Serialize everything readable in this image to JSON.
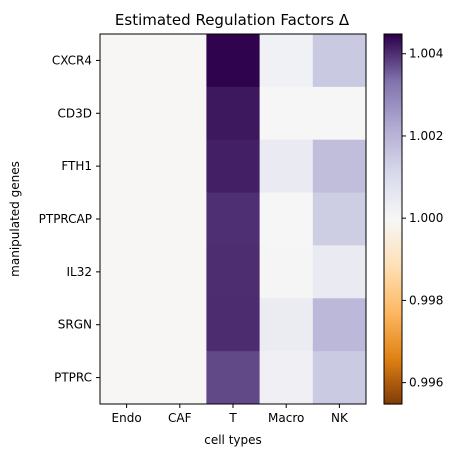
{
  "chart_data": {
    "type": "heatmap",
    "title": "Estimated Regulation Factors Δ",
    "xlabel": "cell types",
    "ylabel": "manipulated genes",
    "columns": [
      "Endo",
      "CAF",
      "T",
      "Macro",
      "NK"
    ],
    "rows": [
      "CXCR4",
      "CD3D",
      "FTH1",
      "PTPRCAP",
      "IL32",
      "SRGN",
      "PTPRC"
    ],
    "values": [
      [
        0.99995,
        0.99995,
        1.00445,
        1.00023,
        1.00151
      ],
      [
        0.99995,
        0.99995,
        1.00425,
        1.0,
        1.0
      ],
      [
        0.99995,
        0.99995,
        1.00418,
        1.00045,
        1.00178
      ],
      [
        0.99995,
        0.99995,
        1.00402,
        1.0,
        1.00142
      ],
      [
        0.99995,
        0.99995,
        1.00405,
        1.00005,
        1.00045
      ],
      [
        0.99995,
        0.99995,
        1.00406,
        1.00042,
        1.00193
      ],
      [
        0.99995,
        0.99995,
        1.00378,
        1.00025,
        1.00148
      ]
    ],
    "colormap": "PuOr",
    "colorbar": {
      "vmin": 0.99548,
      "vmax": 1.00448,
      "ticks": [
        "0.996",
        "0.998",
        "1.000",
        "1.002",
        "1.004"
      ],
      "tick_values": [
        0.996,
        0.998,
        1.0,
        1.002,
        1.004
      ]
    },
    "colormap_colors": [
      "#7f3b08",
      "#e08214",
      "#fdb863",
      "#fee0b6",
      "#f7f7f7",
      "#d8daeb",
      "#b2abd2",
      "#8073ac",
      "#2d004b"
    ],
    "grid": false
  }
}
